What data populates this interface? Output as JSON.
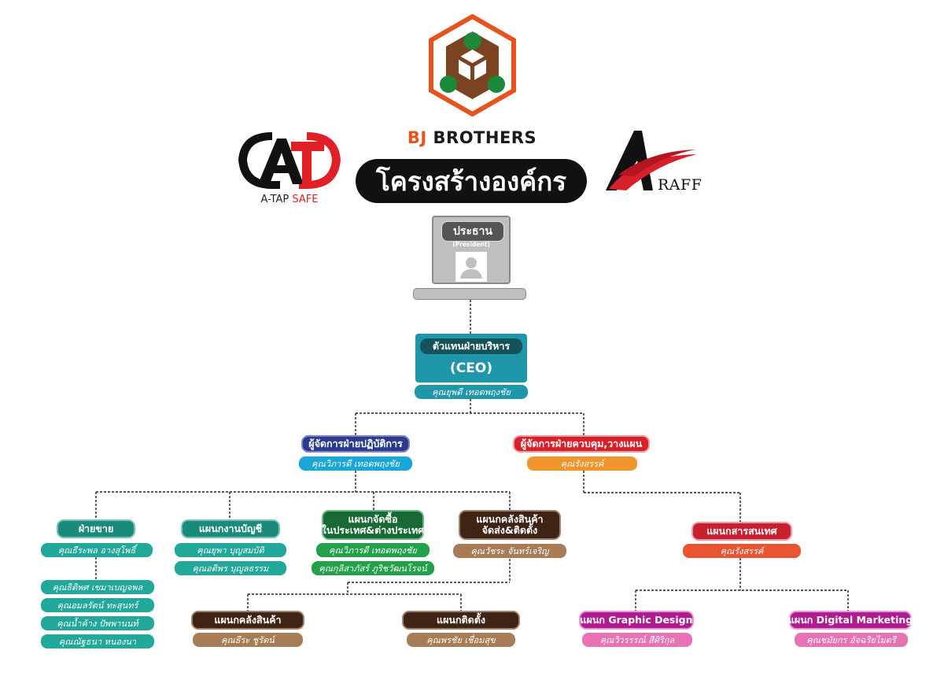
{
  "colors": {
    "accent_orange": "#e8521f",
    "ceo_teal": "#1d97a9",
    "ops_blue": "#2a3a8e",
    "planning_red": "#d8202b",
    "sales_teal": "#1a8b7a",
    "purchase_green": "#186a35",
    "warehouse_brown": "#3f2416",
    "it_red": "#c8202f",
    "design_magenta": "#b01c8f"
  },
  "logos": {
    "bj_brothers": "BJ BROTHERS",
    "atap_main": "A-TAP",
    "atap_safe": "SAFE",
    "araff": "RAFF"
  },
  "title": "โครงสร้างองค์กร",
  "president": {
    "label": "ประธาน",
    "sublabel": "(President)"
  },
  "ceo": {
    "title": "ตัวแทนฝ่ายบริหาร",
    "abbr": "(CEO)",
    "name": "คุณยุพดี เทอดพฤงชัย"
  },
  "ops_manager": {
    "title": "ผู้จัดการฝ่ายปฏิบัติการ",
    "name": "คุณวิภารดี เทอดพฤงชัย"
  },
  "planning_manager": {
    "title": "ผู้จัดการฝ่ายควบคุม,วางแผน",
    "name": "คุณรังสรรค์"
  },
  "sales": {
    "title": "ฝ่ายขาย",
    "lead": "คุณธีระพล อางสุโพธิ์",
    "staff": [
      "คุณธิติพศ เขมาเบญจพล",
      "คุณอมลรัตน์ ทะสุนทร์",
      "คุณน้ำค้าง ปัพพานนท์",
      "คุณณัฐธนา หนองนา"
    ]
  },
  "accounting": {
    "title": "แผนกงานบัญชี",
    "staff": [
      "คุณยุพา บุญสมบัติ",
      "คุณอติพร บุญูลธรรม"
    ]
  },
  "purchasing": {
    "title_line1": "แผนกจัดซื้อ",
    "title_line2": "ในประเทศ&ต่างประเทศ",
    "staff": [
      "คุณวิภารดี เทอดพฤงชัย",
      "คุณกุลิสาภัสร์ ภูริชวัฒนโรจน์"
    ]
  },
  "warehouse": {
    "title_line1": "แผนกคลังสินค้า",
    "title_line2": "จัดส่ง&ติดตั้ง",
    "name": "คุณวัชระ จันทร์เจริญ"
  },
  "warehouse_sub": {
    "title": "แผนกคลังสินค้า",
    "name": "คุณธีระ ชูรัตน์"
  },
  "installation": {
    "title": "แผนกติดตั้ง",
    "name": "คุณพรชัย เชื่อมสุข"
  },
  "it": {
    "title": "แผนกสารสนเทศ",
    "name": "คุณรังสรรค์"
  },
  "graphic": {
    "title": "แผนก Graphic Design",
    "name": "คุณวิวรรรณ์ สีศิริกุล"
  },
  "digital": {
    "title": "แผนก Digital Marketing",
    "name": "คุณชมัยกร อัจฉริยไมตรี"
  }
}
